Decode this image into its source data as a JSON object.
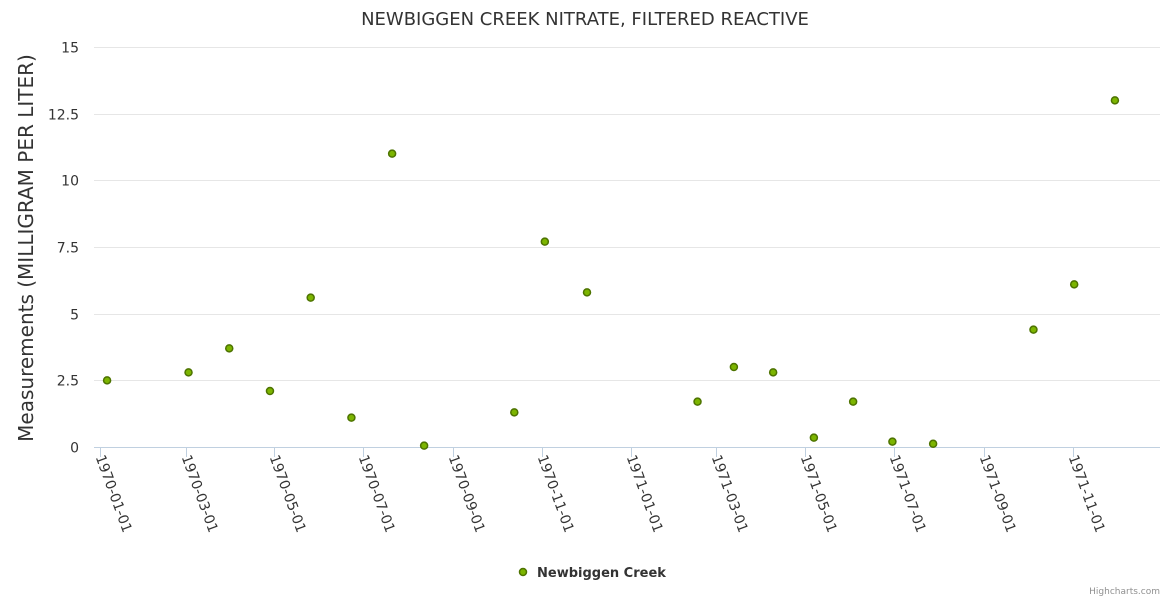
{
  "chart_data": {
    "type": "scatter",
    "title": "NEWBIGGEN CREEK NITRATE, FILTERED REACTIVE",
    "xlabel": "",
    "ylabel": "Measurements (MILLIGRAM PER LITER)",
    "ylim": [
      0,
      15
    ],
    "xlim": [
      "1969-12-28",
      "1971-12-31"
    ],
    "y_ticks": [
      "0",
      "2.5",
      "5",
      "7.5",
      "10",
      "12.5",
      "15"
    ],
    "x_ticks": [
      "1970-01-01",
      "1970-03-01",
      "1970-05-01",
      "1970-07-01",
      "1970-09-01",
      "1970-11-01",
      "1971-01-01",
      "1971-03-01",
      "1971-05-01",
      "1971-07-01",
      "1971-09-01",
      "1971-11-01"
    ],
    "grid": true,
    "legend_position": "bottom-center",
    "series": [
      {
        "name": "Newbiggen Creek",
        "color": "#7cb500",
        "points": [
          {
            "x": "1970-01-06",
            "y": 2.5
          },
          {
            "x": "1970-03-03",
            "y": 2.8
          },
          {
            "x": "1970-03-31",
            "y": 3.7
          },
          {
            "x": "1970-04-28",
            "y": 2.1
          },
          {
            "x": "1970-05-26",
            "y": 5.6
          },
          {
            "x": "1970-06-23",
            "y": 1.1
          },
          {
            "x": "1970-07-21",
            "y": 11.0
          },
          {
            "x": "1970-08-12",
            "y": 0.05
          },
          {
            "x": "1970-10-13",
            "y": 1.3
          },
          {
            "x": "1970-11-03",
            "y": 7.7
          },
          {
            "x": "1970-12-02",
            "y": 5.8
          },
          {
            "x": "1971-02-16",
            "y": 1.7
          },
          {
            "x": "1971-03-13",
            "y": 3.0
          },
          {
            "x": "1971-04-09",
            "y": 2.8
          },
          {
            "x": "1971-05-07",
            "y": 0.35
          },
          {
            "x": "1971-06-03",
            "y": 1.7
          },
          {
            "x": "1971-06-30",
            "y": 0.2
          },
          {
            "x": "1971-07-28",
            "y": 0.12
          },
          {
            "x": "1971-10-05",
            "y": 4.4
          },
          {
            "x": "1971-11-02",
            "y": 6.1
          },
          {
            "x": "1971-11-30",
            "y": 13.0
          }
        ]
      }
    ]
  },
  "credits": "Highcharts.com"
}
